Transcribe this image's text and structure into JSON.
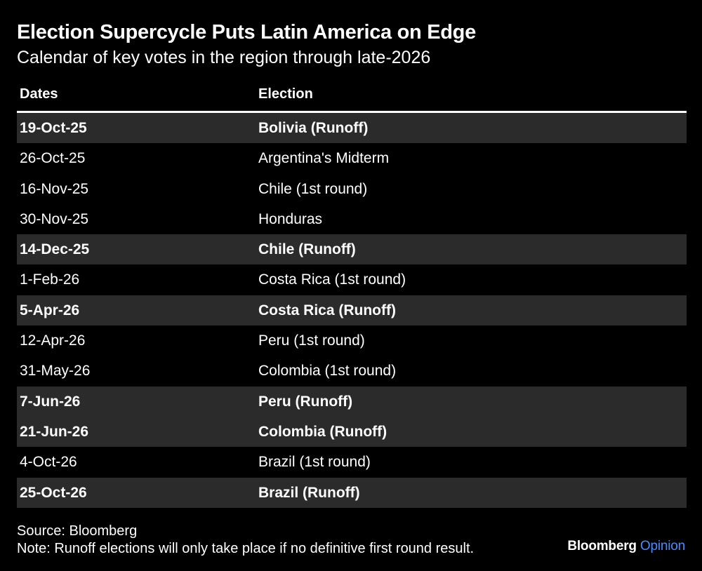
{
  "chart_data": {
    "type": "table",
    "title": "Election Supercycle Puts Latin America on Edge",
    "subtitle": "Calendar of key votes in the region through late-2026",
    "columns": [
      "Dates",
      "Election"
    ],
    "rows": [
      {
        "date": "19-Oct-25",
        "election": "Bolivia (Runoff)",
        "highlight": true
      },
      {
        "date": "26-Oct-25",
        "election": "Argentina's Midterm",
        "highlight": false
      },
      {
        "date": "16-Nov-25",
        "election": "Chile (1st round)",
        "highlight": false
      },
      {
        "date": "30-Nov-25",
        "election": "Honduras",
        "highlight": false
      },
      {
        "date": "14-Dec-25",
        "election": "Chile (Runoff)",
        "highlight": true
      },
      {
        "date": "1-Feb-26",
        "election": "Costa Rica (1st round)",
        "highlight": false
      },
      {
        "date": "5-Apr-26",
        "election": "Costa Rica (Runoff)",
        "highlight": true
      },
      {
        "date": "12-Apr-26",
        "election": "Peru (1st round)",
        "highlight": false
      },
      {
        "date": "31-May-26",
        "election": "Colombia (1st round)",
        "highlight": false
      },
      {
        "date": "7-Jun-26",
        "election": "Peru (Runoff)",
        "highlight": true
      },
      {
        "date": "21-Jun-26",
        "election": "Colombia (Runoff)",
        "highlight": true
      },
      {
        "date": "4-Oct-26",
        "election": "Brazil (1st round)",
        "highlight": false
      },
      {
        "date": "25-Oct-26",
        "election": "Brazil (Runoff)",
        "highlight": true
      }
    ],
    "source": "Source: Bloomberg",
    "note": "Note: Runoff elections will only take place if no definitive first round result."
  },
  "branding": {
    "primary": "Bloomberg",
    "secondary": "Opinion"
  },
  "colors": {
    "background": "#000000",
    "highlight_row": "#2b2b2b",
    "text": "#ffffff",
    "brand_accent": "#4a8cff"
  }
}
